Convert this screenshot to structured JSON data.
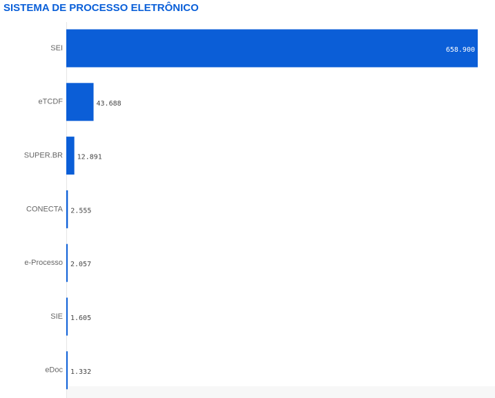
{
  "chart_data": {
    "type": "barh",
    "title": "SISTEMA DE PROCESSO ELETRÔNICO",
    "categories": [
      "SEI",
      "eTCDF",
      "SUPER.BR",
      "CONECTA",
      "e-Processo",
      "SIE",
      "eDoc"
    ],
    "values": [
      658900,
      43688,
      12891,
      2555,
      2057,
      1605,
      1332
    ],
    "value_labels": [
      "658.900",
      "43.688",
      "12.891",
      "2.555",
      "2.057",
      "1.605",
      "1.332"
    ],
    "color": "#0b5ed7"
  }
}
